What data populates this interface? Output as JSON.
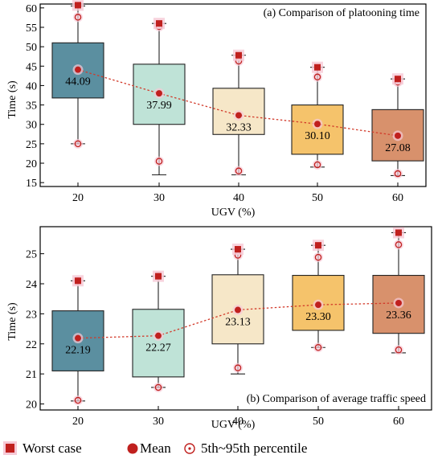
{
  "chart_data": [
    {
      "type": "box",
      "title": "(a) Comparison of platooning time",
      "xlabel": "UGV (%)",
      "ylabel": "Time (s)",
      "ylim": [
        14,
        61
      ],
      "yticks": [
        15,
        20,
        25,
        30,
        35,
        40,
        45,
        50,
        55,
        60
      ],
      "categories": [
        "20",
        "30",
        "40",
        "50",
        "60"
      ],
      "colors": [
        "#5b8fa0",
        "#bfe3d7",
        "#f6e7c8",
        "#f5c36b",
        "#d8916c"
      ],
      "boxes": [
        {
          "q1": 36.8,
          "q3": 51.0,
          "whisker_low": 25.0,
          "whisker_high": 60.5,
          "p5": 25.0,
          "p95": 57.6,
          "worst": 60.7,
          "mean": 44.09,
          "mean_label": "44.09"
        },
        {
          "q1": 30.0,
          "q3": 45.5,
          "whisker_low": 17.0,
          "whisker_high": 56.0,
          "p5": 20.5,
          "p95": 55.2,
          "worst": 56.0,
          "mean": 37.99,
          "mean_label": "37.99"
        },
        {
          "q1": 27.4,
          "q3": 39.3,
          "whisker_low": 17.0,
          "whisker_high": 47.8,
          "p5": 18.0,
          "p95": 46.3,
          "worst": 47.8,
          "mean": 32.33,
          "mean_label": "32.33"
        },
        {
          "q1": 22.3,
          "q3": 35.0,
          "whisker_low": 19.0,
          "whisker_high": 44.7,
          "p5": 19.6,
          "p95": 42.2,
          "worst": 44.7,
          "mean": 30.1,
          "mean_label": "30.10"
        },
        {
          "q1": 20.6,
          "q3": 33.8,
          "whisker_low": 16.8,
          "whisker_high": 41.7,
          "p5": 17.3,
          "p95": 40.9,
          "worst": 41.7,
          "mean": 27.08,
          "mean_label": "27.08"
        }
      ]
    },
    {
      "type": "box",
      "title": "(b) Comparison of average traffic speed",
      "xlabel": "UGV (%)",
      "ylabel": "Time (s)",
      "ylim": [
        19.8,
        25.9
      ],
      "yticks": [
        20,
        21,
        22,
        23,
        24,
        25
      ],
      "categories": [
        "20",
        "30",
        "40",
        "50",
        "60"
      ],
      "colors": [
        "#5b8fa0",
        "#bfe3d7",
        "#f6e7c8",
        "#f5c36b",
        "#d8916c"
      ],
      "boxes": [
        {
          "q1": 21.1,
          "q3": 23.1,
          "whisker_low": 20.1,
          "whisker_high": 24.1,
          "p5": 20.12,
          "p95": 24.1,
          "worst": 24.1,
          "mean": 22.19,
          "mean_label": "22.19"
        },
        {
          "q1": 20.9,
          "q3": 23.15,
          "whisker_low": 20.55,
          "whisker_high": 24.25,
          "p5": 20.55,
          "p95": 24.25,
          "worst": 24.25,
          "mean": 22.27,
          "mean_label": "22.27"
        },
        {
          "q1": 22.0,
          "q3": 24.3,
          "whisker_low": 21.0,
          "whisker_high": 25.15,
          "p5": 21.2,
          "p95": 24.95,
          "worst": 25.15,
          "mean": 23.13,
          "mean_label": "23.13"
        },
        {
          "q1": 22.45,
          "q3": 24.28,
          "whisker_low": 21.88,
          "whisker_high": 25.28,
          "p5": 21.88,
          "p95": 24.88,
          "worst": 25.28,
          "mean": 23.3,
          "mean_label": "23.30"
        },
        {
          "q1": 22.35,
          "q3": 24.28,
          "whisker_low": 21.7,
          "whisker_high": 25.7,
          "p5": 21.8,
          "p95": 25.3,
          "worst": 25.7,
          "mean": 23.36,
          "mean_label": "23.36"
        }
      ]
    }
  ],
  "legend": {
    "worst_label": "Worst case",
    "mean_label": "Mean",
    "percentile_label": "5th~95th percentile"
  },
  "style": {
    "marker_color": "#c0201e",
    "mean_line_color": "#d23a2a"
  }
}
